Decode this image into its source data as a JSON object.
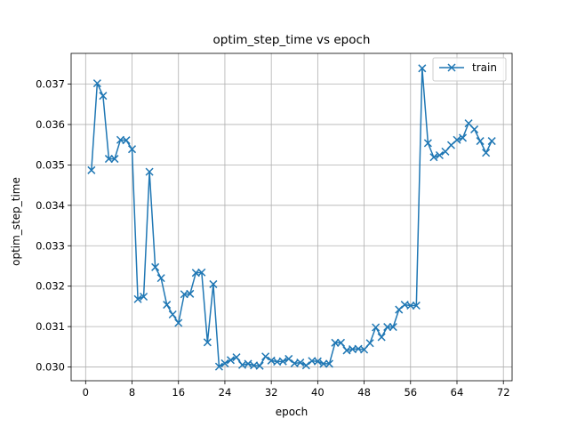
{
  "chart_data": {
    "type": "line",
    "title": "optim_step_time vs epoch",
    "xlabel": "epoch",
    "ylabel": "optim_step_time",
    "xlim": [
      -2.5,
      73.5
    ],
    "ylim": [
      0.02966,
      0.03776
    ],
    "xticks": [
      0,
      8,
      16,
      24,
      32,
      40,
      48,
      56,
      64,
      72
    ],
    "yticks": [
      0.03,
      0.031,
      0.032,
      0.033,
      0.034,
      0.035,
      0.036,
      0.037
    ],
    "ytick_labels": [
      "0.030",
      "0.031",
      "0.032",
      "0.033",
      "0.034",
      "0.035",
      "0.036",
      "0.037"
    ],
    "grid": true,
    "legend_position": "upper right",
    "series": [
      {
        "name": "train",
        "color": "#1f77b4",
        "marker": "x",
        "x": [
          1,
          2,
          3,
          4,
          5,
          6,
          7,
          8,
          9,
          10,
          11,
          12,
          13,
          14,
          15,
          16,
          17,
          18,
          19,
          20,
          21,
          22,
          23,
          24,
          25,
          26,
          27,
          28,
          29,
          30,
          31,
          32,
          33,
          34,
          35,
          36,
          37,
          38,
          39,
          40,
          41,
          42,
          43,
          44,
          45,
          46,
          47,
          48,
          49,
          50,
          51,
          52,
          53,
          54,
          55,
          56,
          57,
          58,
          59,
          60,
          61,
          62,
          63,
          64,
          65,
          66,
          67,
          68,
          69,
          70
        ],
        "y": [
          0.03487,
          0.03702,
          0.03671,
          0.03515,
          0.03515,
          0.03562,
          0.03561,
          0.03539,
          0.03168,
          0.03174,
          0.03483,
          0.03247,
          0.0322,
          0.03154,
          0.0313,
          0.03109,
          0.0318,
          0.03181,
          0.03233,
          0.03234,
          0.03061,
          0.03205,
          0.03001,
          0.03009,
          0.03017,
          0.03024,
          0.03005,
          0.03008,
          0.03004,
          0.03003,
          0.03026,
          0.03016,
          0.03013,
          0.03014,
          0.0302,
          0.03009,
          0.03011,
          0.03004,
          0.03015,
          0.03014,
          0.03008,
          0.03008,
          0.0306,
          0.0306,
          0.03041,
          0.03044,
          0.03045,
          0.03043,
          0.03059,
          0.03098,
          0.03074,
          0.03099,
          0.03099,
          0.03142,
          0.03154,
          0.03152,
          0.03152,
          0.03739,
          0.03554,
          0.03519,
          0.03524,
          0.03533,
          0.03549,
          0.03562,
          0.03567,
          0.03603,
          0.03588,
          0.03559,
          0.0353,
          0.03559
        ]
      }
    ]
  }
}
